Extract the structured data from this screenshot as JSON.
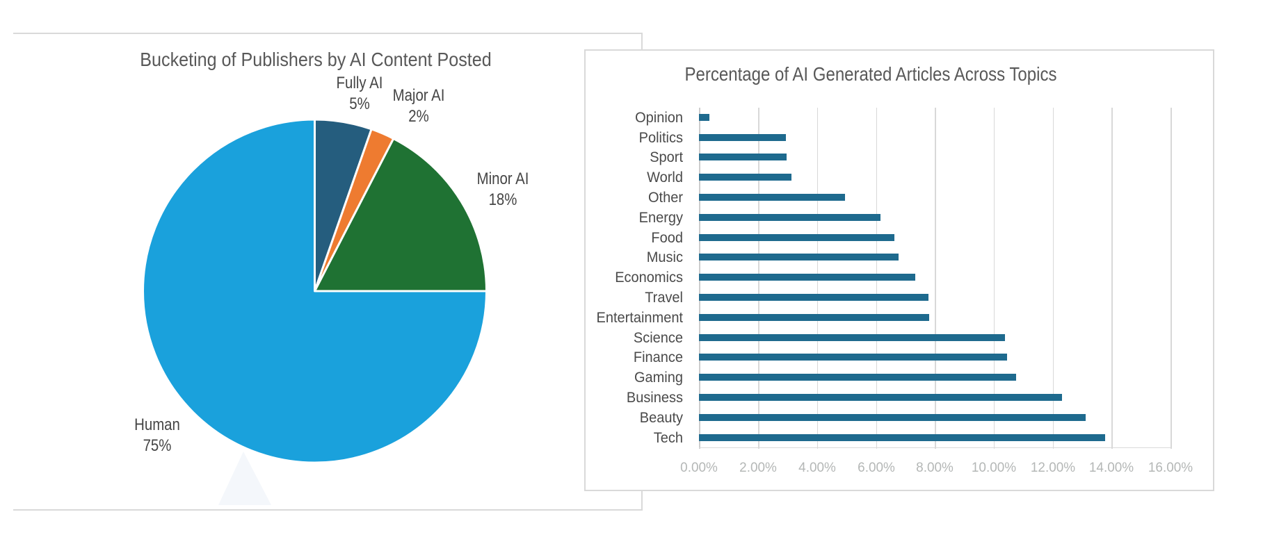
{
  "page": {
    "background_color": "#ffffff",
    "panel_border_color": "#d9d9d9"
  },
  "chart_data": [
    {
      "type": "pie",
      "title": "Bucketing of Publishers by AI Content Posted",
      "slices": [
        {
          "label": "Fully AI",
          "value": 5,
          "display": "5%",
          "color": "#255d7e"
        },
        {
          "label": "Major AI",
          "value": 2,
          "display": "2%",
          "color": "#ee7b30"
        },
        {
          "label": "Minor AI",
          "value": 18,
          "display": "18%",
          "color": "#1f7233"
        },
        {
          "label": "Human",
          "value": 75,
          "display": "75%",
          "color": "#1aa1dc"
        }
      ],
      "start_angle_deg": 0,
      "direction": "clockwise",
      "slice_gap_color": "#ffffff",
      "legend_position": "none",
      "labels_outside": true
    },
    {
      "type": "bar",
      "orientation": "horizontal",
      "title": "Percentage of AI Generated Articles Across Topics",
      "categories": [
        "Opinion",
        "Politics",
        "Sport",
        "World",
        "Other",
        "Energy",
        "Food",
        "Music",
        "Economics",
        "Travel",
        "Entertainment",
        "Science",
        "Finance",
        "Gaming",
        "Business",
        "Beauty",
        "Tech"
      ],
      "values": [
        0.34,
        2.94,
        2.96,
        3.14,
        4.95,
        6.15,
        6.63,
        6.76,
        7.34,
        7.79,
        7.8,
        10.39,
        10.45,
        10.76,
        12.32,
        13.13,
        13.77
      ],
      "value_unit": "%",
      "bar_color": "#1e6a8e",
      "xlabel": "",
      "ylabel": "",
      "xlim": [
        0,
        16
      ],
      "x_tick_labels": [
        "0.00%",
        "2.00%",
        "4.00%",
        "6.00%",
        "8.00%",
        "10.00%",
        "12.00%",
        "14.00%",
        "16.00%"
      ],
      "grid": "vertical",
      "gridline_color": "#d9d9d9",
      "tick_label_color": "#b4b7b6",
      "category_label_color": "#4a4a4a",
      "title_color": "#575757",
      "legend_position": "none"
    }
  ]
}
